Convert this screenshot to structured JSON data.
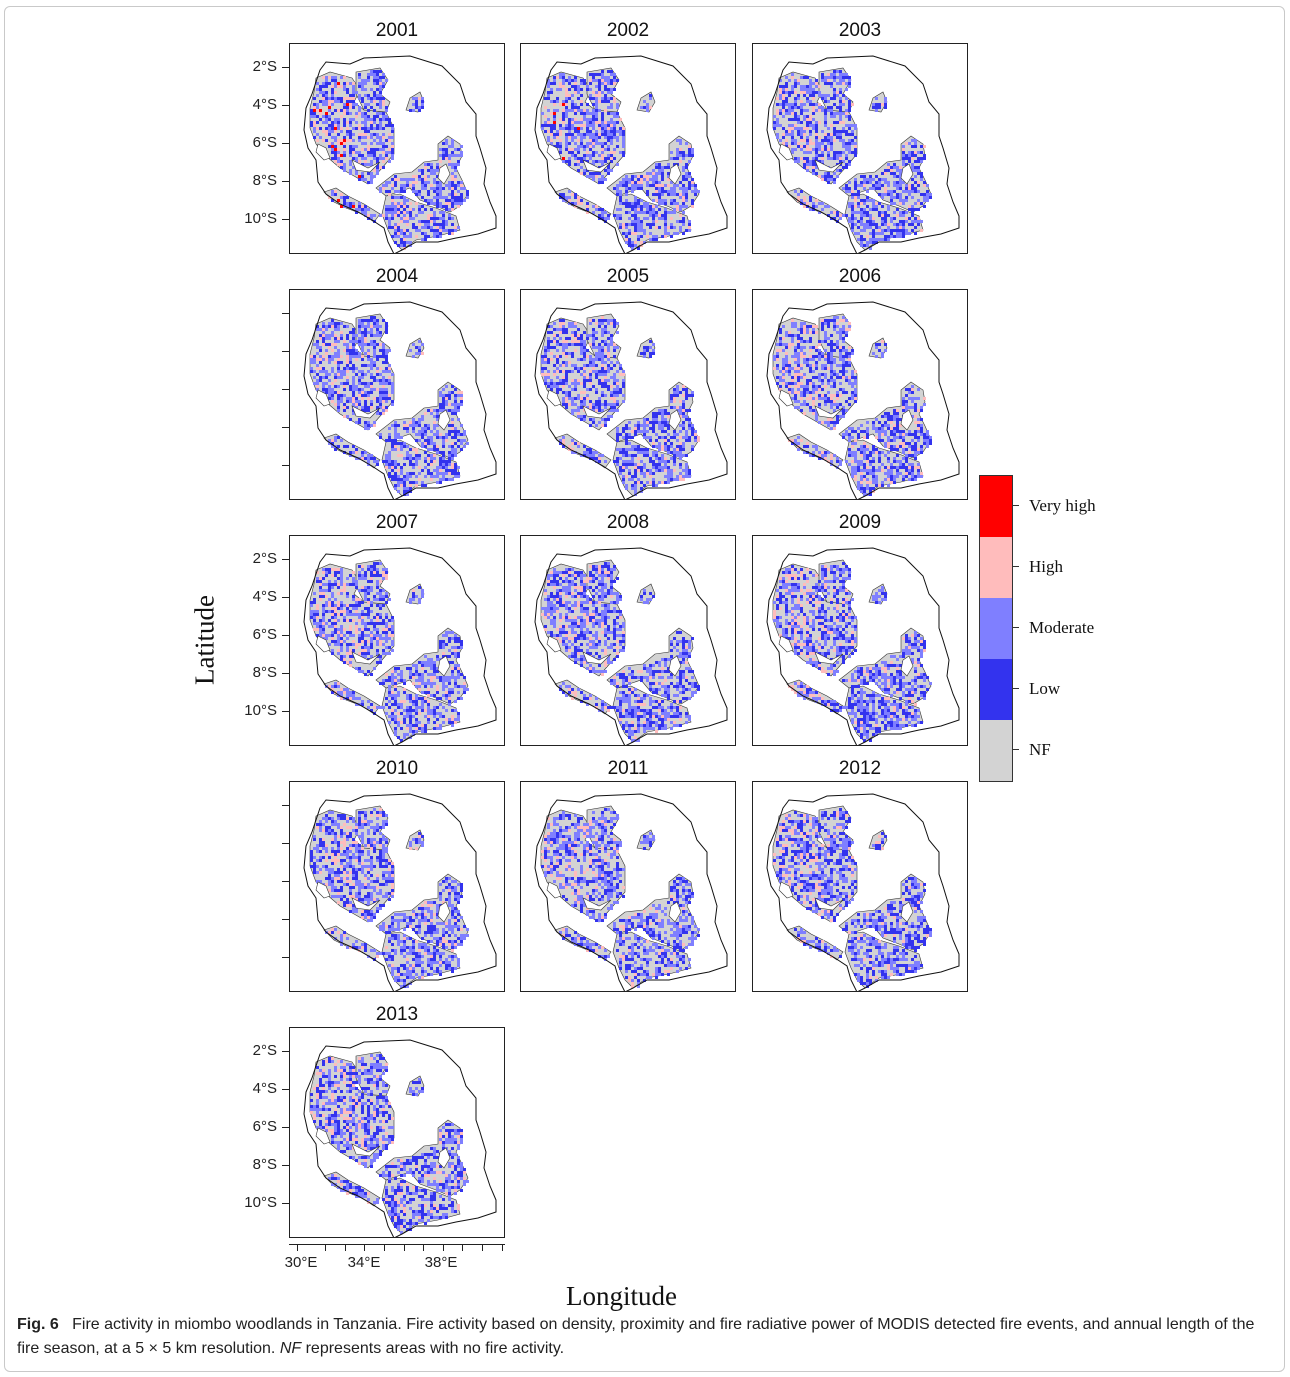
{
  "figure": {
    "panels": [
      {
        "year": "2001"
      },
      {
        "year": "2002"
      },
      {
        "year": "2003"
      },
      {
        "year": "2004"
      },
      {
        "year": "2005"
      },
      {
        "year": "2006"
      },
      {
        "year": "2007"
      },
      {
        "year": "2008"
      },
      {
        "year": "2009"
      },
      {
        "year": "2010"
      },
      {
        "year": "2011"
      },
      {
        "year": "2012"
      },
      {
        "year": "2013"
      }
    ],
    "y_axis": {
      "title": "Latitude",
      "tick_labels": [
        "2°S",
        "4°S",
        "6°S",
        "8°S",
        "10°S"
      ]
    },
    "x_axis": {
      "title": "Longitude",
      "tick_labels": [
        "30°E",
        "34°E",
        "38°E"
      ]
    },
    "legend": {
      "items": [
        {
          "label": "Very high",
          "color": "#ff0000"
        },
        {
          "label": "High",
          "color": "#ffbcbc"
        },
        {
          "label": "Moderate",
          "color": "#7f7fff"
        },
        {
          "label": "Low",
          "color": "#3333ee"
        },
        {
          "label": "NF",
          "color": "#d3d3d3"
        }
      ]
    }
  },
  "caption": {
    "label": "Fig. 6",
    "text": "Fire activity in miombo woodlands in Tanzania. Fire activity based on density, proximity and fire radiative power of MODIS detected fire events, and annual length of the fire season, at a 5 × 5 km resolution.",
    "nf_term": "NF",
    "nf_text": "represents areas with no fire activity."
  }
}
